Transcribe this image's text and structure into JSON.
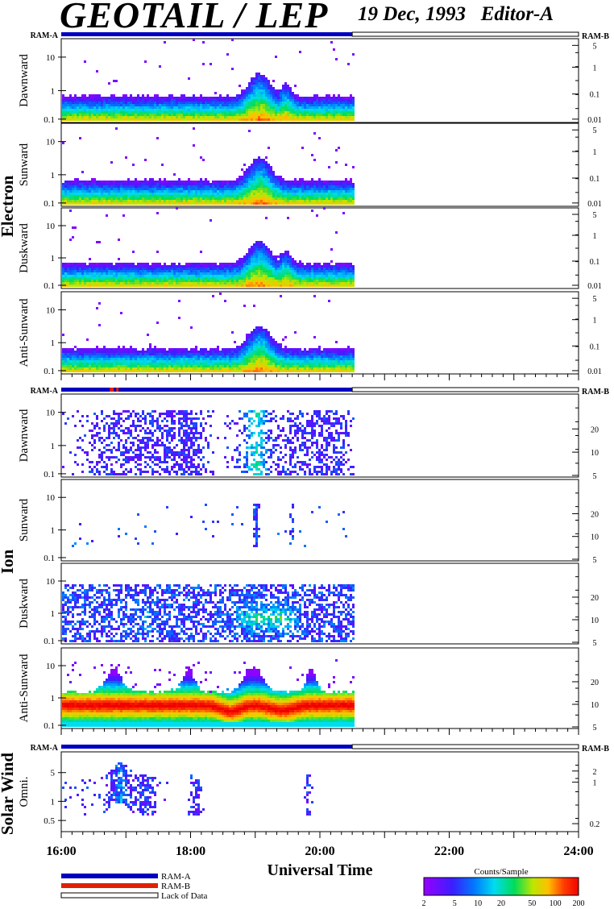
{
  "header": {
    "title": "GEOTAIL / LEP",
    "date": "19 Dec, 1993",
    "editor": "Editor-A"
  },
  "ram_labels": {
    "a": "RAM-A",
    "b": "RAM-B"
  },
  "groups": {
    "electron": "Electron",
    "ion": "Ion",
    "solar_wind": "Solar Wind"
  },
  "panels": [
    {
      "id": "e1",
      "group": "electron",
      "label": "Dawnward",
      "left_ticks": [
        "0.1",
        "1",
        "10"
      ],
      "right_ticks": [
        "0.01",
        "0.1",
        "1",
        "5"
      ]
    },
    {
      "id": "e2",
      "group": "electron",
      "label": "Sunward",
      "left_ticks": [
        "0.1",
        "1",
        "10"
      ],
      "right_ticks": [
        "0.01",
        "0.1",
        "1",
        "5"
      ]
    },
    {
      "id": "e3",
      "group": "electron",
      "label": "Duskward",
      "left_ticks": [
        "0.1",
        "1",
        "10"
      ],
      "right_ticks": [
        "0.01",
        "0.1",
        "1",
        "5"
      ]
    },
    {
      "id": "e4",
      "group": "electron",
      "label": "Anti-Sunward",
      "left_ticks": [
        "0.1",
        "1",
        "10"
      ],
      "right_ticks": [
        "0.01",
        "0.1",
        "1",
        "5"
      ]
    },
    {
      "id": "i1",
      "group": "ion",
      "label": "Dawnward",
      "left_ticks": [
        "0.1",
        "1",
        "10"
      ],
      "right_ticks": [
        "5",
        "10",
        "20"
      ]
    },
    {
      "id": "i2",
      "group": "ion",
      "label": "Sunward",
      "left_ticks": [
        "0.1",
        "1",
        "10"
      ],
      "right_ticks": [
        "5",
        "10",
        "20"
      ]
    },
    {
      "id": "i3",
      "group": "ion",
      "label": "Duskward",
      "left_ticks": [
        "0.1",
        "1",
        "10"
      ],
      "right_ticks": [
        "5",
        "10",
        "20"
      ]
    },
    {
      "id": "i4",
      "group": "ion",
      "label": "Anti-Sunward",
      "left_ticks": [
        "0.1",
        "1",
        "10"
      ],
      "right_ticks": [
        "5",
        "10",
        "20"
      ]
    },
    {
      "id": "s1",
      "group": "solar_wind",
      "label": "Omni.",
      "left_ticks": [
        "0.5",
        "1",
        "5"
      ],
      "right_ticks": [
        "0.2",
        "1",
        "2"
      ]
    }
  ],
  "time_axis": {
    "label": "Universal Time",
    "ticks": [
      "16:00",
      "18:00",
      "20:00",
      "22:00",
      "24:00"
    ]
  },
  "legend": {
    "ram_a": "RAM-A",
    "ram_b": "RAM-B",
    "lack": "Lack of Data"
  },
  "colorbar": {
    "title": "Counts/Sample",
    "ticks": [
      "2",
      "5",
      "10",
      "20",
      "50",
      "100",
      "200"
    ]
  },
  "colors": {
    "ram_a": "#0000c0",
    "ram_b": "#e02000",
    "accent": "#8000ff"
  },
  "chart_data": {
    "type": "heatmap",
    "title": "GEOTAIL / LEP",
    "xlabel": "Universal Time",
    "xlim": [
      "16:00",
      "24:00"
    ],
    "data_coverage_end": "20:30",
    "colorscale": {
      "title": "Counts/Sample",
      "range": [
        2,
        200
      ],
      "scale": "log"
    },
    "series": [
      {
        "name": "Electron Dawnward",
        "activity": [
          {
            "from": "18:45",
            "to": "19:25",
            "level": "enhanced"
          }
        ]
      },
      {
        "name": "Electron Sunward",
        "activity": [
          {
            "from": "18:45",
            "to": "19:20",
            "level": "enhanced"
          }
        ]
      },
      {
        "name": "Electron Duskward",
        "activity": [
          {
            "from": "18:45",
            "to": "19:35",
            "level": "enhanced"
          }
        ]
      },
      {
        "name": "Electron Anti-Sunward",
        "activity": [
          {
            "from": "18:45",
            "to": "19:20",
            "level": "enhanced"
          }
        ]
      },
      {
        "name": "Ion Dawnward",
        "activity": [
          {
            "from": "16:00",
            "to": "20:30",
            "level": "sporadic"
          }
        ]
      },
      {
        "name": "Ion Sunward",
        "activity": [
          {
            "from": "18:55",
            "to": "19:35",
            "level": "weak"
          }
        ]
      },
      {
        "name": "Ion Duskward",
        "activity": [
          {
            "from": "16:00",
            "to": "20:30",
            "level": "moderate"
          }
        ]
      },
      {
        "name": "Ion Anti-Sunward",
        "activity": [
          {
            "from": "16:00",
            "to": "20:30",
            "level": "strong"
          }
        ]
      },
      {
        "name": "Solar Wind Omni.",
        "activity": [
          {
            "from": "16:40",
            "to": "17:30",
            "level": "weak"
          },
          {
            "from": "17:55",
            "to": "18:25",
            "level": "weak"
          },
          {
            "from": "19:40",
            "to": "19:55",
            "level": "weak"
          }
        ]
      }
    ]
  }
}
